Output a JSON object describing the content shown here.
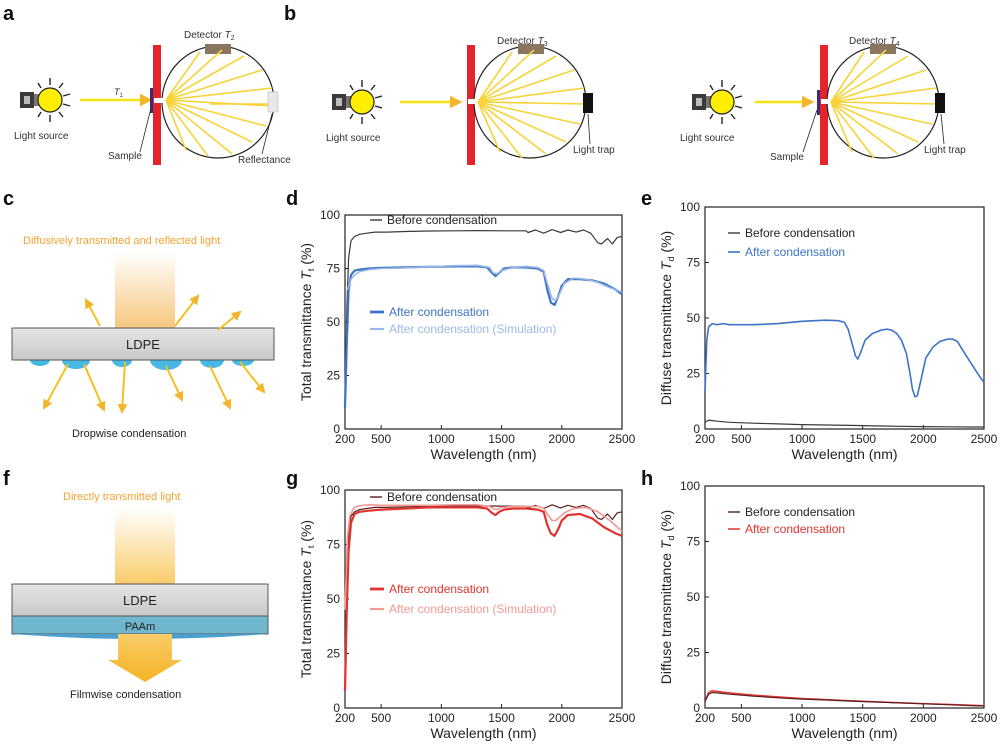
{
  "panel_letters": {
    "a": "a",
    "b": "b",
    "c": "c",
    "d": "d",
    "e": "e",
    "f": "f",
    "g": "g",
    "h": "h"
  },
  "colors": {
    "blue": "#3d74c8",
    "blue_light": "#9cb9e6",
    "red": "#e0342f",
    "red_light": "#f19a96",
    "dark": "#3a3a3a",
    "darkred": "#5a1e1e",
    "light_yellow": "#fff200",
    "bar_red": "#e5232b",
    "water": "#46b8e6",
    "film": "#6fb7cf",
    "ldpe": "#d9d9d9",
    "arrow": "#f3b52a"
  },
  "panel_a": {
    "detector": "Detector ",
    "detector_sym": "T",
    "detector_sub": "2",
    "incident_sym": "T",
    "incident_sub": "1",
    "light_source": "Light source",
    "sample": "Sample",
    "reflectance": "Reflectance"
  },
  "panel_b1": {
    "detector": "Detector ",
    "detector_sym": "T",
    "detector_sub": "3",
    "light_source": "Light source",
    "light_trap": "Light trap"
  },
  "panel_b2": {
    "detector": "Detector ",
    "detector_sym": "T",
    "detector_sub": "4",
    "light_source": "Light source",
    "sample": "Sample",
    "light_trap": "Light trap"
  },
  "panel_c": {
    "top_label": "Diffusively transmitted and reflected light",
    "film": "LDPE",
    "bottom_label": "Dropwise condensation"
  },
  "panel_f": {
    "top_label": "Directly transmitted light",
    "film": "LDPE",
    "coating": "PAAm",
    "bottom_label": "Filmwise condensation"
  },
  "chart_data": [
    {
      "id": "d",
      "type": "line",
      "xlabel": "Wavelength (nm)",
      "ylabel": "Total transmittance ",
      "ylabel_sym": "T",
      "ylabel_sub": "t",
      "ylabel_unit": " (%)",
      "xlim": [
        200,
        2500
      ],
      "ylim": [
        0,
        100
      ],
      "xticks": [
        200,
        500,
        1000,
        1500,
        2000,
        2500
      ],
      "yticks": [
        0,
        25,
        50,
        75,
        100
      ],
      "xtick_labels": [
        "200",
        "500",
        "1000",
        "1500",
        "2000",
        "2500"
      ],
      "ytick_labels": [
        "0",
        "25",
        "50",
        "75",
        "100"
      ],
      "legend_top": "Before condensation",
      "legend_bottom": [
        "After condensation",
        "After condensation (Simulation)"
      ],
      "series": [
        {
          "name": "Before condensation",
          "color": "#3a3a3a",
          "width": 1.2,
          "x": [
            200,
            215,
            230,
            250,
            280,
            320,
            380,
            450,
            550,
            700,
            900,
            1100,
            1300,
            1500,
            1700,
            1720,
            1780,
            1850,
            1920,
            1990,
            2050,
            2120,
            2180,
            2240,
            2300,
            2330,
            2380,
            2420,
            2460,
            2500
          ],
          "y": [
            10,
            55,
            80,
            88,
            90,
            91,
            91.5,
            92,
            92,
            92.3,
            92.5,
            92.6,
            92.7,
            92.6,
            92.6,
            91.8,
            93,
            91.5,
            93.2,
            91.8,
            93,
            92,
            93,
            91.5,
            87,
            86.5,
            89,
            86.5,
            89.5,
            90
          ]
        },
        {
          "name": "After condensation",
          "color": "#3d74c8",
          "width": 2.2,
          "x": [
            200,
            215,
            230,
            250,
            280,
            320,
            400,
            500,
            700,
            900,
            1100,
            1300,
            1380,
            1420,
            1450,
            1480,
            1520,
            1600,
            1700,
            1800,
            1850,
            1880,
            1910,
            1940,
            1970,
            2000,
            2050,
            2150,
            2250,
            2350,
            2450,
            2500
          ],
          "y": [
            10,
            40,
            65,
            72,
            74,
            74.5,
            75,
            75.3,
            75.5,
            75.8,
            76,
            76,
            75.5,
            73,
            71.5,
            73,
            75,
            75.5,
            75.5,
            75,
            73.5,
            65,
            59,
            58,
            62,
            67,
            70,
            70,
            69.5,
            68,
            65,
            63
          ]
        },
        {
          "name": "After condensation (Simulation)",
          "color": "#9cb9e6",
          "width": 1.6,
          "x": [
            220,
            250,
            280,
            320,
            400,
            500,
            700,
            900,
            1100,
            1300,
            1400,
            1430,
            1460,
            1500,
            1600,
            1700,
            1800,
            1850,
            1880,
            1920,
            1950,
            1980,
            2020,
            2100,
            2200,
            2300,
            2400,
            2500
          ],
          "y": [
            65,
            70,
            72,
            73.5,
            74.5,
            75,
            75.3,
            75.8,
            76.3,
            76.5,
            75.5,
            73,
            72.5,
            74,
            75.5,
            76,
            75.5,
            74,
            68,
            61,
            60,
            63,
            68,
            70.5,
            70,
            68.5,
            66,
            64
          ]
        }
      ]
    },
    {
      "id": "e",
      "type": "line",
      "xlabel": "Wavelength (nm)",
      "ylabel": "Diffuse transmittance ",
      "ylabel_sym": "T",
      "ylabel_sub": "d",
      "ylabel_unit": " (%)",
      "xlim": [
        200,
        2500
      ],
      "ylim": [
        0,
        100
      ],
      "xticks": [
        200,
        500,
        1000,
        1500,
        2000,
        2500
      ],
      "yticks": [
        0,
        25,
        50,
        75,
        100
      ],
      "xtick_labels": [
        "200",
        "500",
        "1000",
        "1500",
        "2000",
        "2500"
      ],
      "ytick_labels": [
        "0",
        "25",
        "50",
        "75",
        "100"
      ],
      "legend_top": [
        "Before condensation",
        "After condensation"
      ],
      "series": [
        {
          "name": "Before condensation",
          "color": "#3a3a3a",
          "width": 1.2,
          "x": [
            200,
            230,
            260,
            300,
            400,
            600,
            800,
            1000,
            1200,
            1400,
            1600,
            1800,
            2000,
            2200,
            2400,
            2500
          ],
          "y": [
            3,
            4,
            3.8,
            3.5,
            3,
            2.6,
            2.3,
            2,
            1.8,
            1.6,
            1.4,
            1.2,
            1.1,
            1,
            0.9,
            0.9
          ]
        },
        {
          "name": "After condensation",
          "color": "#3d74c8",
          "width": 1.6,
          "x": [
            200,
            215,
            230,
            260,
            300,
            350,
            400,
            500,
            600,
            700,
            800,
            900,
            1000,
            1100,
            1200,
            1300,
            1350,
            1380,
            1410,
            1440,
            1460,
            1480,
            1520,
            1580,
            1650,
            1700,
            1740,
            1780,
            1820,
            1860,
            1890,
            1910,
            1930,
            1950,
            1980,
            2020,
            2080,
            2140,
            2200,
            2240,
            2280,
            2330,
            2400,
            2460,
            2500
          ],
          "y": [
            17,
            40,
            46,
            47.5,
            47,
            47.5,
            47,
            47,
            47,
            47.2,
            47.5,
            48,
            48.5,
            48.8,
            49,
            48.8,
            48,
            45,
            39,
            33,
            31.5,
            34,
            40,
            43,
            44.5,
            45,
            44.5,
            43,
            40,
            34,
            25,
            18,
            14.5,
            15,
            22,
            32,
            37,
            39.5,
            40.5,
            40.5,
            39.5,
            35,
            29,
            24,
            21
          ]
        }
      ]
    },
    {
      "id": "g",
      "type": "line",
      "xlabel": "Wavelength (nm)",
      "ylabel": "Total transmittance ",
      "ylabel_sym": "T",
      "ylabel_sub": "t",
      "ylabel_unit": " (%)",
      "xlim": [
        200,
        2500
      ],
      "ylim": [
        0,
        100
      ],
      "xticks": [
        200,
        500,
        1000,
        1500,
        2000,
        2500
      ],
      "yticks": [
        0,
        25,
        50,
        75,
        100
      ],
      "xtick_labels": [
        "200",
        "500",
        "1000",
        "1500",
        "2000",
        "2500"
      ],
      "ytick_labels": [
        "0",
        "25",
        "50",
        "75",
        "100"
      ],
      "legend_top": "Before condensation",
      "legend_bottom": [
        "After condensation",
        "After condensation (Simulation)"
      ],
      "series": [
        {
          "name": "Before condensation",
          "color": "#5a1e1e",
          "width": 1.2,
          "x": [
            200,
            215,
            230,
            250,
            280,
            320,
            380,
            450,
            550,
            700,
            900,
            1100,
            1300,
            1500,
            1700,
            1720,
            1780,
            1850,
            1920,
            1990,
            2050,
            2120,
            2180,
            2240,
            2300,
            2330,
            2380,
            2420,
            2460,
            2500
          ],
          "y": [
            10,
            55,
            80,
            88,
            90,
            91,
            91.5,
            92,
            92,
            92.3,
            92.5,
            92.6,
            92.7,
            92.6,
            92.6,
            91.8,
            93,
            91.5,
            93.2,
            91.8,
            93,
            92,
            93,
            91.5,
            87,
            86.5,
            89,
            86.5,
            89.5,
            90
          ]
        },
        {
          "name": "After condensation",
          "color": "#e0342f",
          "width": 2.2,
          "x": [
            200,
            215,
            230,
            250,
            280,
            320,
            400,
            500,
            700,
            900,
            1100,
            1300,
            1380,
            1420,
            1450,
            1480,
            1520,
            1600,
            1700,
            1800,
            1850,
            1880,
            1910,
            1940,
            1970,
            2000,
            2050,
            2150,
            2250,
            2350,
            2450,
            2500
          ],
          "y": [
            8,
            45,
            72,
            85,
            89,
            90,
            90.5,
            91,
            91.5,
            92,
            92,
            92,
            91.5,
            89.5,
            88.5,
            90,
            91,
            91.5,
            91.5,
            91,
            90,
            84,
            80,
            79,
            82,
            86,
            88.5,
            89,
            87,
            83,
            80,
            79
          ]
        },
        {
          "name": "After condensation (Simulation)",
          "color": "#f19a96",
          "width": 1.6,
          "x": [
            200,
            220,
            240,
            270,
            300,
            350,
            400,
            500,
            700,
            900,
            1100,
            1300,
            1400,
            1430,
            1460,
            1500,
            1600,
            1700,
            1800,
            1850,
            1880,
            1920,
            1950,
            1980,
            2020,
            2100,
            2200,
            2300,
            2400,
            2500
          ],
          "y": [
            45,
            78,
            88,
            91.5,
            92.5,
            93,
            93.2,
            93,
            93,
            93,
            93.2,
            93.2,
            92.5,
            91.5,
            91,
            92,
            92.5,
            92.5,
            92.5,
            91.5,
            89,
            86,
            86,
            87.5,
            89.5,
            91.5,
            92,
            90,
            86,
            81
          ]
        }
      ]
    },
    {
      "id": "h",
      "type": "line",
      "xlabel": "Wavelength (nm)",
      "ylabel": "Diffuse transmittance ",
      "ylabel_sym": "T",
      "ylabel_sub": "d",
      "ylabel_unit": " (%)",
      "xlim": [
        200,
        2500
      ],
      "ylim": [
        0,
        100
      ],
      "xticks": [
        200,
        500,
        1000,
        1500,
        2000,
        2500
      ],
      "yticks": [
        0,
        25,
        50,
        75,
        100
      ],
      "xtick_labels": [
        "200",
        "500",
        "1000",
        "1500",
        "2000",
        "2500"
      ],
      "ytick_labels": [
        "0",
        "25",
        "50",
        "75",
        "100"
      ],
      "legend_top": [
        "Before condensation",
        "After condensation"
      ],
      "series": [
        {
          "name": "After condensation",
          "color": "#e0342f",
          "width": 1.5,
          "x": [
            200,
            230,
            260,
            300,
            400,
            600,
            800,
            1000,
            1200,
            1400,
            1600,
            1800,
            2000,
            2200,
            2400,
            2500
          ],
          "y": [
            3,
            7,
            7.8,
            7.5,
            6.8,
            5.8,
            5,
            4.3,
            3.8,
            3.3,
            2.8,
            2.4,
            2,
            1.6,
            1.2,
            1
          ]
        },
        {
          "name": "Before condensation",
          "color": "#5a1e1e",
          "width": 1.2,
          "x": [
            200,
            230,
            260,
            300,
            400,
            600,
            800,
            1000,
            1200,
            1400,
            1600,
            1800,
            2000,
            2200,
            2400,
            2500
          ],
          "y": [
            3,
            6.2,
            7,
            6.8,
            6.2,
            5.3,
            4.6,
            4,
            3.6,
            3.1,
            2.7,
            2.3,
            1.9,
            1.5,
            1.1,
            0.9
          ]
        }
      ]
    }
  ]
}
